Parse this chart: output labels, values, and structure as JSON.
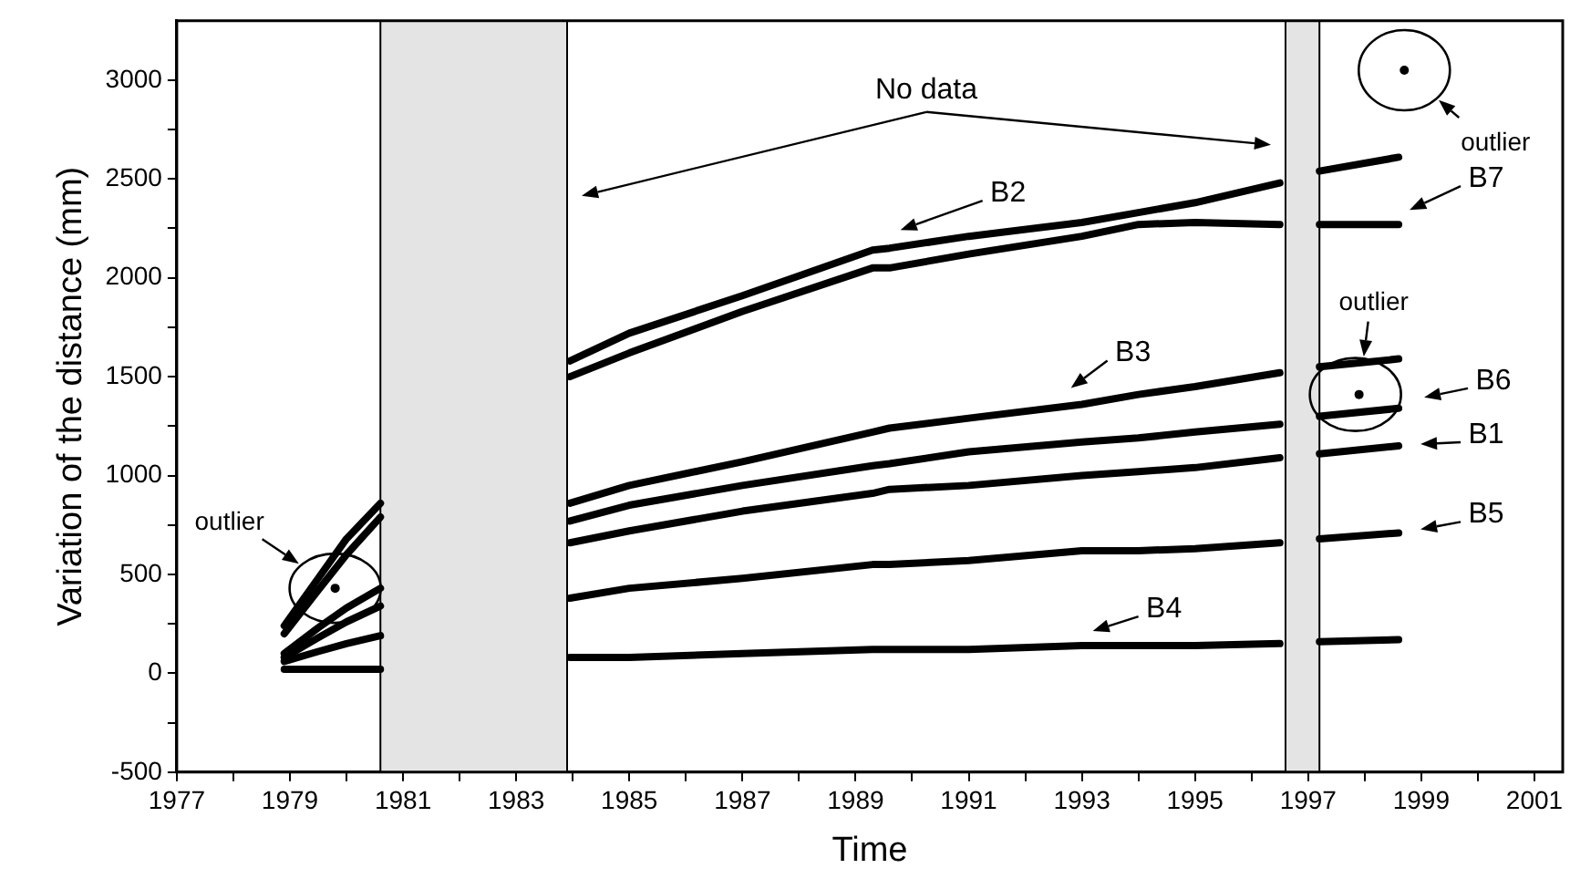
{
  "chart_data": {
    "type": "line",
    "xlabel": "Time",
    "ylabel": "Variation of the distance (mm)",
    "x": [
      1978.9,
      1979.5,
      1980.0,
      1980.6,
      1982.2,
      1983.95,
      1985,
      1987,
      1989.3,
      1989.6,
      1991,
      1993,
      1994,
      1995,
      1996.5,
      1996.9,
      1997.2,
      1998.6
    ],
    "series": [
      {
        "name": "B1",
        "color": "#000000",
        "values": [
          null,
          null,
          null,
          null,
          null,
          660,
          720,
          820,
          910,
          930,
          950,
          1000,
          1020,
          1040,
          1090,
          null,
          1110,
          1150
        ]
      },
      {
        "name": "B2",
        "color": "#000000",
        "values": [
          240,
          480,
          680,
          860,
          null,
          1580,
          1720,
          1910,
          2140,
          2150,
          2210,
          2280,
          2330,
          2380,
          2480,
          null,
          2540,
          2610
        ]
      },
      {
        "name": "B3",
        "color": "#000000",
        "values": [
          100,
          230,
          330,
          430,
          null,
          860,
          950,
          1070,
          1220,
          1240,
          1290,
          1360,
          1410,
          1450,
          1520,
          null,
          1550,
          1590
        ]
      },
      {
        "name": "B4",
        "color": "#000000",
        "values": [
          20,
          20,
          20,
          20,
          null,
          80,
          80,
          100,
          120,
          120,
          120,
          140,
          140,
          140,
          150,
          null,
          160,
          170
        ]
      },
      {
        "name": "B5",
        "color": "#000000",
        "values": [
          60,
          110,
          150,
          190,
          null,
          380,
          430,
          480,
          550,
          550,
          570,
          620,
          620,
          630,
          660,
          null,
          680,
          710
        ]
      },
      {
        "name": "B6",
        "color": "#000000",
        "values": [
          80,
          180,
          260,
          340,
          null,
          770,
          850,
          950,
          1050,
          1060,
          1120,
          1170,
          1190,
          1220,
          1260,
          null,
          1300,
          1340
        ]
      },
      {
        "name": "B7",
        "color": "#000000",
        "values": [
          200,
          420,
          600,
          790,
          null,
          1500,
          1620,
          1830,
          2050,
          2050,
          2120,
          2210,
          2270,
          2280,
          2270,
          null,
          2270,
          2270
        ]
      },
      {
        "type": "scatter",
        "marker": "circle",
        "color": "#000000",
        "x": [
          1979.8,
          1997.9,
          1998.7
        ],
        "values": [
          430,
          1410,
          3050
        ]
      }
    ],
    "xlim": [
      1977,
      2001.5
    ],
    "xticks": [
      1977,
      {
        "value": 1978,
        "label": null
      },
      1979,
      {
        "value": 1980,
        "label": null
      },
      1981,
      {
        "value": 1982,
        "label": null
      },
      1983,
      {
        "value": 1984,
        "label": null
      },
      1985,
      {
        "value": 1986,
        "label": null
      },
      1987,
      {
        "value": 1988,
        "label": null
      },
      1989,
      {
        "value": 1990,
        "label": null
      },
      1991,
      {
        "value": 1992,
        "label": null
      },
      1993,
      {
        "value": 1994,
        "label": null
      },
      1995,
      {
        "value": 1996,
        "label": null
      },
      1997,
      {
        "value": 1998,
        "label": null
      },
      1999,
      {
        "value": 2000,
        "label": null
      },
      2001
    ],
    "ylim": [
      -500,
      3300
    ],
    "yticks": [
      -500,
      {
        "value": -250,
        "label": null
      },
      0,
      {
        "value": 250,
        "label": null
      },
      500,
      {
        "value": 750,
        "label": null
      },
      1000,
      {
        "value": 1250,
        "label": null
      },
      1500,
      {
        "value": 1750,
        "label": null
      },
      2000,
      {
        "value": 2250,
        "label": null
      },
      2500,
      {
        "value": 2750,
        "label": null
      },
      3000
    ],
    "bands": [
      {
        "axis": "x",
        "from": 1980.6,
        "to": 1983.9,
        "color": "#e4e4e4"
      },
      {
        "axis": "x",
        "from": 1996.6,
        "to": 1997.2,
        "color": "#e4e4e4"
      }
    ],
    "annotations": [
      "No data",
      "outlier",
      "outlier",
      "outlier"
    ],
    "grid": false,
    "legend": "right",
    "marker": "none",
    "line_style": "solid"
  }
}
